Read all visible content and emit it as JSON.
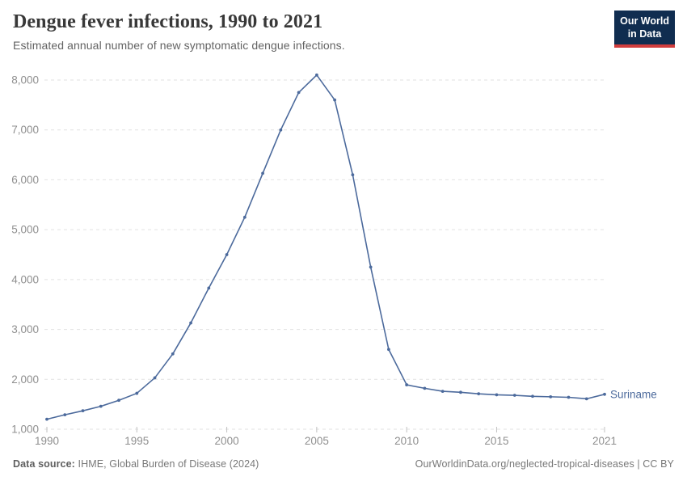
{
  "header": {
    "title": "Dengue fever infections, 1990 to 2021",
    "subtitle": "Estimated annual number of new symptomatic dengue infections."
  },
  "logo": {
    "line1": "Our World",
    "line2": "in Data"
  },
  "footer": {
    "data_source_label": "Data source:",
    "data_source_value": " IHME, Global Burden of Disease (2024)",
    "link_text": "OurWorldinData.org/neglected-tropical-diseases | CC BY"
  },
  "colors": {
    "line": "#4c6a9c",
    "grid": "#e2e2e2",
    "axis_tick": "#c2c2c2",
    "axis_text": "#8f8f8f",
    "logo_bg": "#102d50",
    "logo_red": "#d13d3d"
  },
  "chart_data": {
    "type": "line",
    "title": "Dengue fever infections, 1990 to 2021",
    "subtitle": "Estimated annual number of new symptomatic dengue infections.",
    "x": [
      1990,
      1991,
      1992,
      1993,
      1994,
      1995,
      1996,
      1997,
      1998,
      1999,
      2000,
      2001,
      2002,
      2003,
      2004,
      2005,
      2006,
      2007,
      2008,
      2009,
      2010,
      2011,
      2012,
      2013,
      2014,
      2015,
      2016,
      2017,
      2018,
      2019,
      2020,
      2021
    ],
    "series": [
      {
        "name": "Suriname",
        "values": [
          1200,
          1290,
          1370,
          1460,
          1580,
          1720,
          2030,
          2510,
          3130,
          3830,
          4500,
          5250,
          6130,
          7000,
          7750,
          8100,
          7600,
          6100,
          4250,
          2600,
          1890,
          1820,
          1760,
          1740,
          1710,
          1690,
          1680,
          1660,
          1650,
          1640,
          1610,
          1700
        ]
      }
    ],
    "x_ticks": [
      1990,
      1995,
      2000,
      2005,
      2010,
      2015,
      2021
    ],
    "x_tick_labels": [
      "1990",
      "1995",
      "2000",
      "2005",
      "2010",
      "2015",
      "2021"
    ],
    "y_ticks": [
      1000,
      2000,
      3000,
      4000,
      5000,
      6000,
      7000,
      8000
    ],
    "y_tick_labels": [
      "1,000",
      "2,000",
      "3,000",
      "4,000",
      "5,000",
      "6,000",
      "7,000",
      "8,000"
    ],
    "x_range": [
      1990,
      2021
    ],
    "ylim": [
      1000,
      8000
    ],
    "grid": true,
    "legend": "end-of-line entity label",
    "end_label": "Suriname"
  }
}
